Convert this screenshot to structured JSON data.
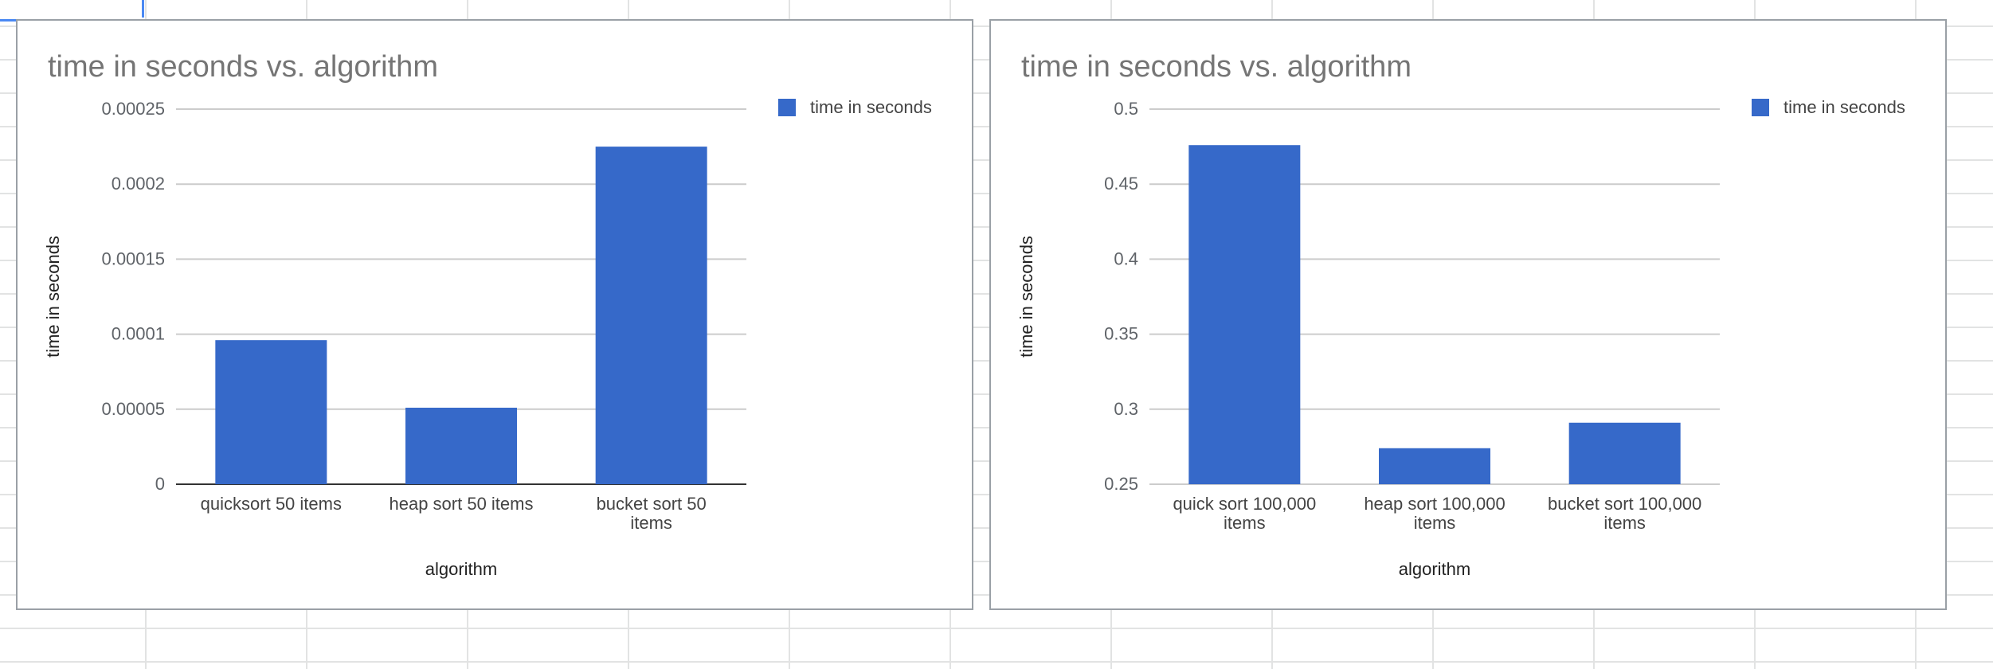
{
  "chart_data": [
    {
      "type": "bar",
      "title": "time in seconds vs. algorithm",
      "xlabel": "algorithm",
      "ylabel": "time in seconds",
      "categories": [
        [
          "quicksort 50 items"
        ],
        [
          "heap sort 50 items"
        ],
        [
          "bucket sort 50",
          "items"
        ]
      ],
      "series": [
        {
          "name": "time in seconds",
          "values": [
            9.6e-05,
            5.1e-05,
            0.000225
          ]
        }
      ],
      "ylim": [
        0,
        0.00025
      ],
      "yticks": [
        "0",
        "0.00005",
        "0.0001",
        "0.00015",
        "0.0002",
        "0.00025"
      ],
      "grid": true,
      "legend": "top-right",
      "bar_color": "#3669c9"
    },
    {
      "type": "bar",
      "title": "time in seconds vs. algorithm",
      "xlabel": "algorithm",
      "ylabel": "time in seconds",
      "categories": [
        [
          "quick sort 100,000",
          "items"
        ],
        [
          "heap sort 100,000",
          "items"
        ],
        [
          "bucket sort 100,000",
          "items"
        ]
      ],
      "series": [
        {
          "name": "time in seconds",
          "values": [
            0.476,
            0.274,
            0.291
          ]
        }
      ],
      "ylim": [
        0.25,
        0.5
      ],
      "yticks": [
        "0.25",
        "0.3",
        "0.35",
        "0.4",
        "0.45",
        "0.5"
      ],
      "grid": true,
      "legend": "top-right",
      "bar_color": "#3669c9"
    }
  ]
}
